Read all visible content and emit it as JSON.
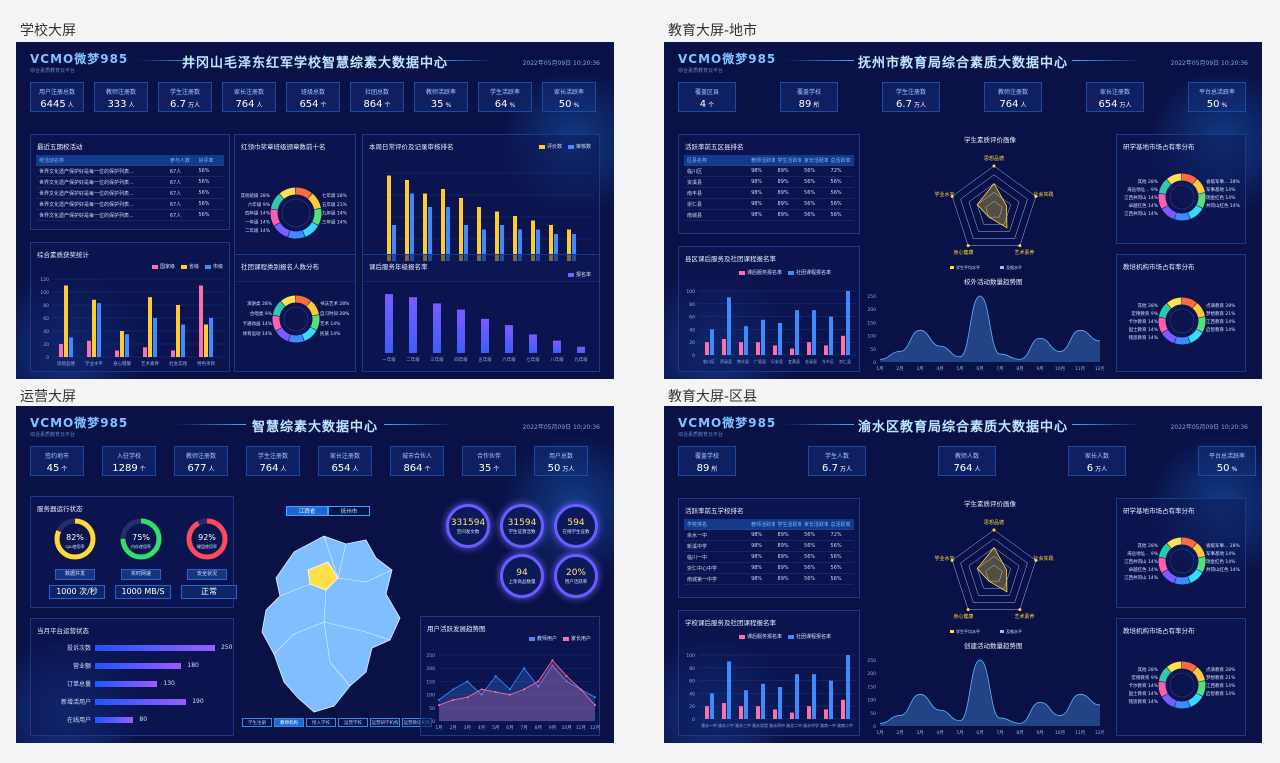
{
  "sections": [
    {
      "label": "学校大屏"
    },
    {
      "label": "教育大屏-地市"
    },
    {
      "label": "运营大屏"
    },
    {
      "label": "教育大屏-区县"
    }
  ],
  "brand": {
    "logo": "VCMO微梦985",
    "sub": "综合素质教育云平台",
    "date": "2022年05月09日 10:20:36"
  },
  "school": {
    "title": "井冈山毛泽东红军学校智慧综素大数据中心",
    "kpis": [
      {
        "label": "用户注册总数",
        "value": "6445",
        "unit": "人"
      },
      {
        "label": "教师注册数",
        "value": "333",
        "unit": "人"
      },
      {
        "label": "学生注册数",
        "value": "6.7",
        "unit": "万人"
      },
      {
        "label": "家长注册数",
        "value": "764",
        "unit": "人"
      },
      {
        "label": "班级总数",
        "value": "654",
        "unit": "个"
      },
      {
        "label": "社团总数",
        "value": "864",
        "unit": "个"
      },
      {
        "label": "教师活跃率",
        "value": "35",
        "unit": "%"
      },
      {
        "label": "学生活跃率",
        "value": "64",
        "unit": "%"
      },
      {
        "label": "家长活跃率",
        "value": "50",
        "unit": "%"
      }
    ],
    "activities": {
      "title": "最近五期校活动",
      "headers": [
        "校活动名称",
        "参与人数",
        "好评率"
      ],
      "rows": [
        [
          "世界文化遗产保护好是每一位的保护列表...",
          "67人",
          "56%"
        ],
        [
          "世界文化遗产保护好是每一位的保护列表...",
          "67人",
          "56%"
        ],
        [
          "世界文化遗产保护好是每一位的保护列表...",
          "67人",
          "56%"
        ],
        [
          "世界文化遗产保护好是每一位的保护列表...",
          "67人",
          "56%"
        ],
        [
          "世界文化遗产保护好是每一位的保护列表...",
          "67人",
          "56%"
        ]
      ]
    },
    "top10": {
      "title": "红领巾奖章班级颁章数前十名",
      "labels": [
        "其他班级 28%",
        "七年级 28%",
        "六年级 9%",
        "五年级 21%",
        "四年级 14%",
        "九年级 14%",
        "一年级 14%",
        "三年级 14%",
        "二年级 14%"
      ]
    },
    "weekly": {
      "title": "本周日常评价及记录审核排名",
      "legend": [
        "评价数",
        "审核数"
      ]
    },
    "awards": {
      "title": "综合素质获奖统计",
      "legend": [
        "国家级",
        "省级",
        "市级"
      ],
      "yticks": [
        "120",
        "100",
        "80",
        "60",
        "40",
        "20",
        "0"
      ],
      "cats": [
        "思想品德",
        "学业水平",
        "身心健康",
        "艺术素养",
        "社会实践",
        "特色项目"
      ]
    },
    "clubs": {
      "title": "社团课程类别报名人数分布",
      "labels": [
        "演讲类 28%",
        "书法艺术 28%",
        "合唱类 9%",
        "自习时间 28%",
        "卡通动画 14%",
        "艺术 14%",
        "体育运动 14%",
        "民族 14%"
      ]
    },
    "grades": {
      "title": "课后服务年级报名率",
      "legend": [
        "报名率"
      ],
      "cats": [
        "一年级",
        "二年级",
        "三年级",
        "四年级",
        "五年级",
        "六年级",
        "七年级",
        "八年级",
        "九年级"
      ]
    }
  },
  "city": {
    "title": "抚州市教育局综合素质大数据中心",
    "kpis": [
      {
        "label": "覆盖区县",
        "value": "4",
        "unit": "个"
      },
      {
        "label": "覆盖学校",
        "value": "89",
        "unit": "所"
      },
      {
        "label": "学生注册数",
        "value": "6.7",
        "unit": "万人"
      },
      {
        "label": "教师注册数",
        "value": "764",
        "unit": "人"
      },
      {
        "label": "家长注册数",
        "value": "654",
        "unit": "万人"
      },
      {
        "label": "平台总活跃率",
        "value": "50",
        "unit": "%"
      }
    ],
    "rank": {
      "title": "活跃率前五区县排名",
      "headers": [
        "区县名称",
        "教师活跃率",
        "学生活跃率",
        "家长活跃率",
        "总活跃率"
      ],
      "rows": [
        [
          "临川区",
          "98%",
          "89%",
          "56%",
          "72%"
        ],
        [
          "资溪县",
          "98%",
          "89%",
          "56%",
          "56%"
        ],
        [
          "南丰县",
          "98%",
          "89%",
          "56%",
          "56%"
        ],
        [
          "崇仁县",
          "98%",
          "89%",
          "56%",
          "56%"
        ],
        [
          "南城县",
          "98%",
          "89%",
          "56%",
          "56%"
        ]
      ]
    },
    "radar": {
      "title": "学生素质评价画像",
      "axes": [
        "思想品德",
        "社会实践",
        "艺术素养",
        "身心健康",
        "学业水平"
      ],
      "legend": [
        "学生平均水平",
        "及格水平"
      ]
    },
    "market": {
      "title": "研学基地市场占有率分布",
      "labels": [
        "其他 28%",
        "省级军事... 28%",
        "海岳地址... 9%",
        "军事基地 14%",
        "江西井冈山 14%",
        "瑞金红色 14%",
        "卓越红色 14%",
        "井冈山红色 14%",
        "江西井冈山 14%"
      ]
    },
    "service": {
      "title": "县区课后服务及社团课程报名率",
      "legend": [
        "课后服务报名率",
        "社团课程报名率"
      ],
      "cats": [
        "临川区",
        "资溪县",
        "南丰县",
        "广昌县",
        "乐安县",
        "宜黄县",
        "金溪县",
        "东乡区",
        "崇仁县"
      ]
    },
    "trend": {
      "title": "校外活动数量趋势图",
      "months": [
        "1月",
        "2月",
        "3月",
        "4月",
        "5月",
        "6月",
        "7月",
        "8月",
        "9月",
        "10月",
        "11月",
        "12月"
      ],
      "yticks": [
        "250",
        "200",
        "150",
        "100",
        "50",
        "0"
      ]
    },
    "org": {
      "title": "教培机构市场占有率分布",
      "labels": [
        "其他 28%",
        "点滴教育 28%",
        "宏德教育 9%",
        "梦想教育 21%",
        "卡尔教育 14%",
        "江西教育 14%",
        "国士教育 14%",
        "启智教育 14%",
        "铭思教育 14%"
      ]
    }
  },
  "ops": {
    "title": "智慧综素大数据中心",
    "kpis": [
      {
        "label": "签约地市",
        "value": "45",
        "unit": "个"
      },
      {
        "label": "入驻学校",
        "value": "1289",
        "unit": "个"
      },
      {
        "label": "教师注册数",
        "value": "677",
        "unit": "人"
      },
      {
        "label": "学生注册数",
        "value": "764",
        "unit": "人"
      },
      {
        "label": "家长注册数",
        "value": "654",
        "unit": "人"
      },
      {
        "label": "城市合伙人",
        "value": "864",
        "unit": "个"
      },
      {
        "label": "合作伙伴",
        "value": "35",
        "unit": "个"
      },
      {
        "label": "用户总数",
        "value": "50",
        "unit": "万人"
      }
    ],
    "server": {
      "title": "服务器运行状态",
      "gauges": [
        {
          "pct": "82%",
          "label": "cpu使用率",
          "color": "#ffd93a",
          "frac": 0.82
        },
        {
          "pct": "75%",
          "label": "内存使用率",
          "color": "#2fe06a",
          "frac": 0.75
        },
        {
          "pct": "92%",
          "label": "硬盘使用率",
          "color": "#ff4a5e",
          "frac": 0.92
        }
      ],
      "btns": [
        "数据并发",
        "实时网速",
        "安全状况"
      ],
      "vals": [
        "1000 次/秒",
        "1000 MB/S",
        "正常"
      ]
    },
    "platform": {
      "title": "当月平台运营状态",
      "rows": [
        {
          "label": "投诉次数",
          "value": 250
        },
        {
          "label": "营业额",
          "value": 180
        },
        {
          "label": "订单总量",
          "value": 130
        },
        {
          "label": "新增活用户",
          "value": 190
        },
        {
          "label": "在线用户",
          "value": 80
        }
      ]
    },
    "map": {
      "tabs": [
        "江西省",
        "抚州市"
      ],
      "btns": [
        "学生注册",
        "教师机构",
        "接入学校",
        "运营学校",
        "运营研学机构",
        "运营教培机构"
      ]
    },
    "bubbles": [
      {
        "n": "331594",
        "t": "空间发文数"
      },
      {
        "n": "31594",
        "t": "学生证激活数"
      },
      {
        "n": "594",
        "t": "在线学生证数"
      },
      {
        "n": "94",
        "t": "上架商品数量"
      },
      {
        "n": "20%",
        "t": "用户活跃率"
      }
    ],
    "growth": {
      "title": "用户活跃发展趋势图",
      "legend": [
        "教师用户",
        "家长用户"
      ],
      "months": [
        "1月",
        "2月",
        "3月",
        "4月",
        "5月",
        "6月",
        "7月",
        "8月",
        "9月",
        "10月",
        "11月",
        "12月"
      ],
      "yticks": [
        "250",
        "200",
        "150",
        "100",
        "50",
        "0"
      ]
    }
  },
  "county": {
    "title": "渝水区教育局综合素质大数据中心",
    "kpis": [
      {
        "label": "覆盖学校",
        "value": "89",
        "unit": "所"
      },
      {
        "label": "学生人数",
        "value": "6.7",
        "unit": "万人"
      },
      {
        "label": "教师人数",
        "value": "764",
        "unit": "人"
      },
      {
        "label": "家长人数",
        "value": "6",
        "unit": "万人"
      },
      {
        "label": "平台总活跃率",
        "value": "50",
        "unit": "%"
      }
    ],
    "rank": {
      "title": "活跃率前五学校排名",
      "headers": [
        "学校排名",
        "教师活跃率",
        "学生活跃率",
        "家长活跃率",
        "总活跃率"
      ],
      "rows": [
        [
          "余水一中",
          "98%",
          "89%",
          "56%",
          "72%"
        ],
        [
          "新溪中学",
          "98%",
          "89%",
          "56%",
          "56%"
        ],
        [
          "临川一中",
          "98%",
          "89%",
          "56%",
          "56%"
        ],
        [
          "崇仁中心中学",
          "98%",
          "89%",
          "56%",
          "56%"
        ],
        [
          "南城第一中学",
          "98%",
          "89%",
          "56%",
          "56%"
        ]
      ]
    },
    "radar": {
      "title": "学生素质评价画像"
    },
    "market": {
      "title": "研学基地市场占有率分布"
    },
    "service": {
      "title": "学校课后服务及社团课程报名率",
      "cats": [
        "渝水一中",
        "渝水二中",
        "渝水三中",
        "渝水实验",
        "渝水四中",
        "渝北二中",
        "渝水中学",
        "渝南一中",
        "渝南二中"
      ]
    },
    "trend": {
      "title": "创建活动数量趋势图"
    },
    "org": {
      "title": "教培机构市场占有率分布"
    }
  },
  "colors": {
    "yellow": "#ffcc33",
    "blue": "#3d8bff",
    "pink": "#ff6fa8",
    "cyan": "#37d9ff",
    "purple": "#7a5cff"
  }
}
